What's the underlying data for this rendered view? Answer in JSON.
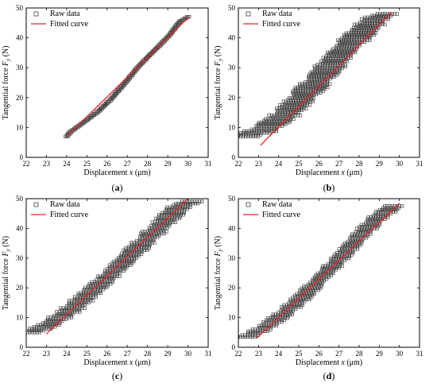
{
  "figure": {
    "legend": {
      "raw": "Raw data",
      "fit": "Fitted curve"
    },
    "axis": {
      "x_label": "Displacement",
      "x_var": "x",
      "x_unit": " (μm)",
      "y_label_prefix": "Tangential force ",
      "y_var": "F",
      "y_sub": "y",
      "y_unit": " (N)"
    },
    "colors": {
      "raw_marker": "#444444",
      "fit_line": "#e8232a",
      "axis": "#000000"
    }
  },
  "chart_data": [
    {
      "type": "scatter",
      "panel": "a",
      "label": "(a)",
      "xlim": [
        22,
        31
      ],
      "ylim": [
        0,
        50
      ],
      "xticks": [
        22,
        23,
        24,
        25,
        26,
        27,
        28,
        29,
        30,
        31
      ],
      "yticks": [
        0,
        10,
        20,
        30,
        40,
        50
      ],
      "series": [
        {
          "name": "Raw data",
          "kind": "band",
          "points": [
            [
              24.0,
              7
            ],
            [
              24.2,
              8.6
            ],
            [
              24.8,
              11.5
            ],
            [
              25.5,
              15
            ],
            [
              26.2,
              19.5
            ],
            [
              26.9,
              25
            ],
            [
              27.5,
              30
            ],
            [
              28.0,
              33.5
            ],
            [
              28.6,
              37.5
            ],
            [
              29.1,
              41
            ],
            [
              29.6,
              45.5
            ],
            [
              30.0,
              47
            ]
          ],
          "halfwidth": 0.07
        },
        {
          "name": "Fitted curve",
          "kind": "line",
          "x": [
            24.0,
            30.05
          ],
          "y": [
            7.0,
            47.0
          ]
        }
      ]
    },
    {
      "type": "scatter",
      "panel": "b",
      "label": "(b)",
      "xlim": [
        22,
        31
      ],
      "ylim": [
        0,
        50
      ],
      "xticks": [
        22,
        23,
        24,
        25,
        26,
        27,
        28,
        29,
        30,
        31
      ],
      "yticks": [
        0,
        10,
        20,
        30,
        40,
        50
      ],
      "series": [
        {
          "name": "Raw data",
          "kind": "band",
          "points": [
            [
              22.3,
              7
            ],
            [
              23.2,
              9
            ],
            [
              24.3,
              14
            ],
            [
              25.3,
              21
            ],
            [
              26.2,
              27.5
            ],
            [
              27.1,
              35
            ],
            [
              28.0,
              41
            ],
            [
              28.9,
              47
            ],
            [
              29.4,
              48
            ]
          ],
          "halfwidth": 0.8
        },
        {
          "name": "Fitted curve",
          "kind": "line",
          "x": [
            23.1,
            29.6
          ],
          "y": [
            4.0,
            48.5
          ]
        }
      ]
    },
    {
      "type": "scatter",
      "panel": "c",
      "label": "(c)",
      "xlim": [
        22,
        31
      ],
      "ylim": [
        0,
        50
      ],
      "xticks": [
        22,
        23,
        24,
        25,
        26,
        27,
        28,
        29,
        30,
        31
      ],
      "yticks": [
        0,
        10,
        20,
        30,
        40,
        50
      ],
      "series": [
        {
          "name": "Raw data",
          "kind": "band",
          "points": [
            [
              22.3,
              5
            ],
            [
              23.1,
              7.5
            ],
            [
              24.1,
              12
            ],
            [
              25.1,
              18
            ],
            [
              26.1,
              24
            ],
            [
              27.0,
              30
            ],
            [
              27.9,
              36
            ],
            [
              28.8,
              42
            ],
            [
              29.6,
              47.5
            ],
            [
              30.2,
              49
            ]
          ],
          "halfwidth": 0.6
        },
        {
          "name": "Fitted curve",
          "kind": "line",
          "x": [
            23.0,
            30.0
          ],
          "y": [
            4.5,
            50.0
          ]
        }
      ]
    },
    {
      "type": "scatter",
      "panel": "d",
      "label": "(d)",
      "xlim": [
        22,
        31
      ],
      "ylim": [
        0,
        50
      ],
      "xticks": [
        22,
        23,
        24,
        25,
        26,
        27,
        28,
        29,
        30,
        31
      ],
      "yticks": [
        0,
        10,
        20,
        30,
        40,
        50
      ],
      "series": [
        {
          "name": "Raw data",
          "kind": "band",
          "points": [
            [
              22.4,
              3.5
            ],
            [
              23.3,
              6.5
            ],
            [
              24.2,
              11
            ],
            [
              25.2,
              17
            ],
            [
              26.2,
              24
            ],
            [
              27.2,
              31
            ],
            [
              28.1,
              38
            ],
            [
              28.9,
              43.5
            ],
            [
              29.7,
              47.5
            ]
          ],
          "halfwidth": 0.5
        },
        {
          "name": "Fitted curve",
          "kind": "line",
          "x": [
            22.9,
            30.0
          ],
          "y": [
            3.0,
            48.5
          ]
        }
      ]
    }
  ]
}
